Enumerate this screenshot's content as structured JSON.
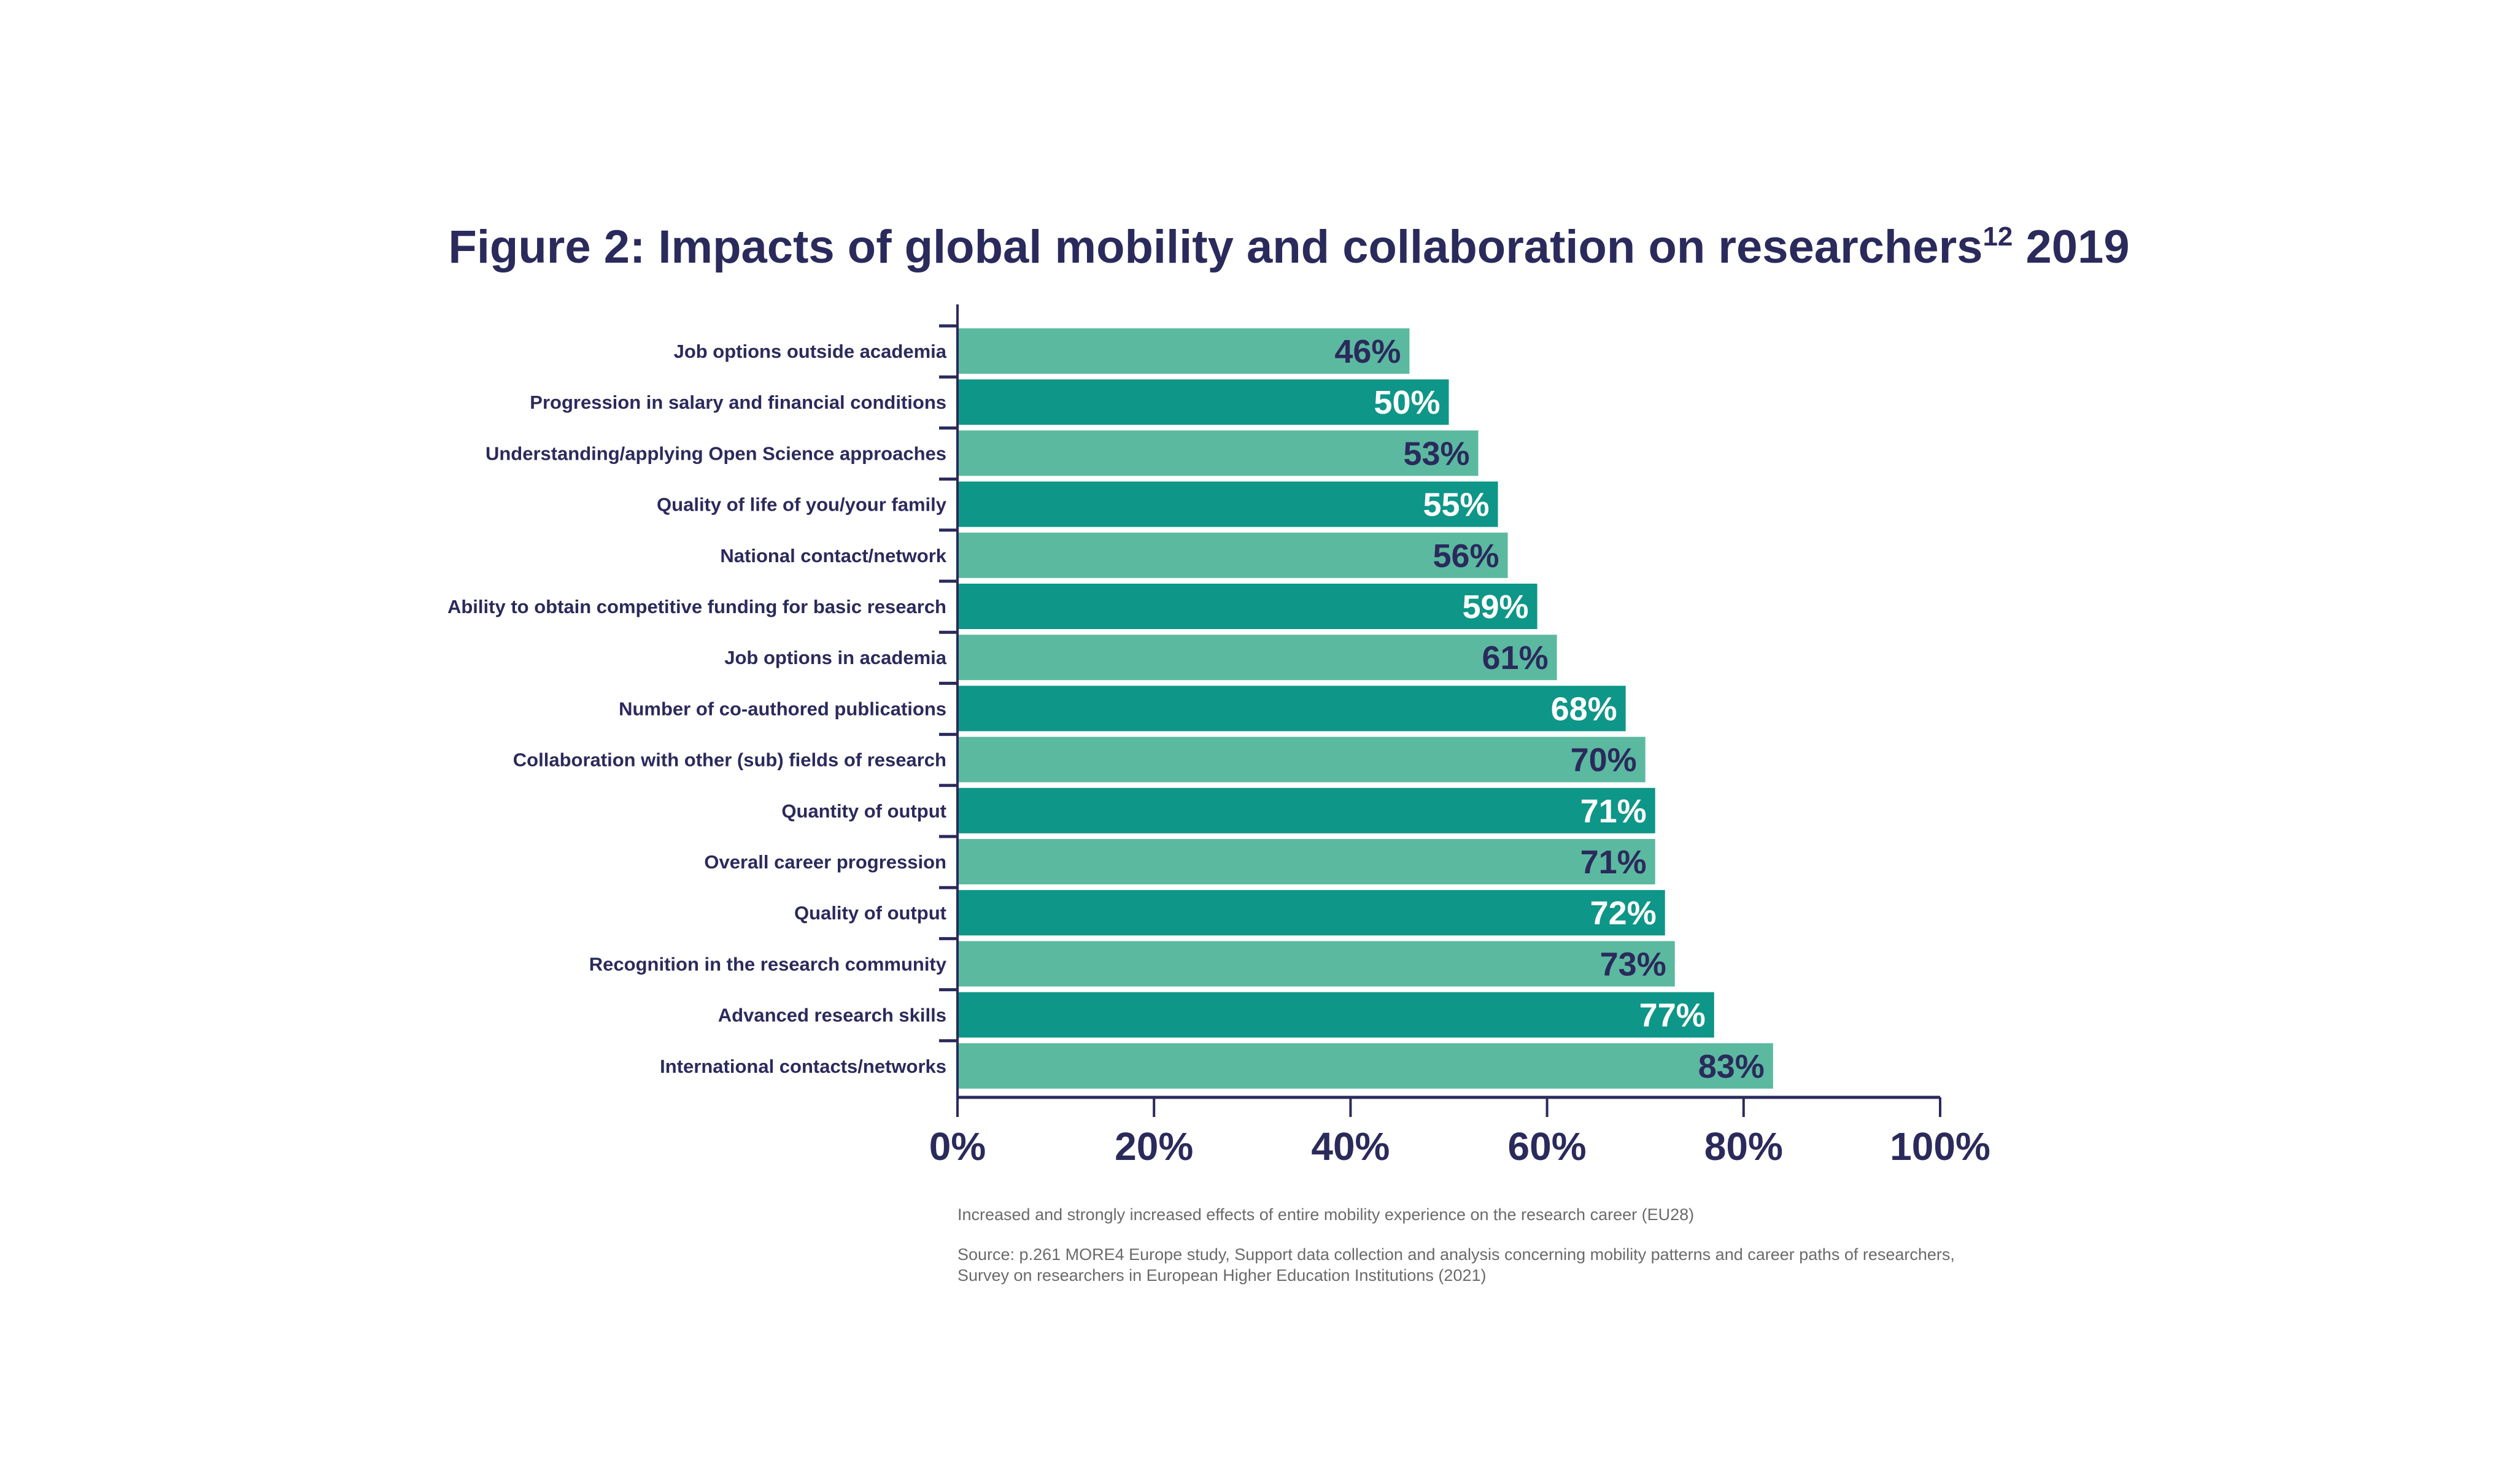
{
  "chart_data": {
    "type": "bar",
    "orientation": "horizontal",
    "title": "Figure 2: Impacts of global mobility and collaboration on researchers",
    "title_superscript": "12",
    "title_suffix": " 2019",
    "categories": [
      "Job options outside academia",
      "Progression in salary and financial conditions",
      "Understanding/applying Open Science approaches",
      "Quality of life of you/your family",
      "National contact/network",
      "Ability to obtain competitive funding for basic research",
      "Job options in academia",
      "Number of co-authored publications",
      "Collaboration with other (sub) fields of research",
      "Quantity of output",
      "Overall career progression",
      "Quality of output",
      "Recognition in the research community",
      "Advanced research skills",
      "International contacts/networks"
    ],
    "values": [
      46,
      50,
      53,
      55,
      56,
      59,
      61,
      68,
      70,
      71,
      71,
      72,
      73,
      77,
      83
    ],
    "value_labels": [
      "46%",
      "50%",
      "53%",
      "55%",
      "56%",
      "59%",
      "61%",
      "68%",
      "70%",
      "71%",
      "71%",
      "72%",
      "73%",
      "77%",
      "83%"
    ],
    "xlim": [
      0,
      100
    ],
    "x_ticks": [
      "0%",
      "20%",
      "40%",
      "60%",
      "80%",
      "100%"
    ],
    "grid": false,
    "legend": "none",
    "colors": {
      "bar_light": "#5bb9a0",
      "bar_dark": "#0e9688",
      "text_dark": "#2b2a5c",
      "text_on_dark": "#ffffff"
    },
    "notes": {
      "subtitle": "Increased and strongly increased effects of entire mobility experience on the research career (EU28)",
      "source_line1": "Source: p.261 MORE4 Europe study, Support data collection and analysis concerning mobility patterns and career paths of researchers,",
      "source_line2": "Survey on researchers in European Higher Education Institutions (2021)"
    }
  }
}
